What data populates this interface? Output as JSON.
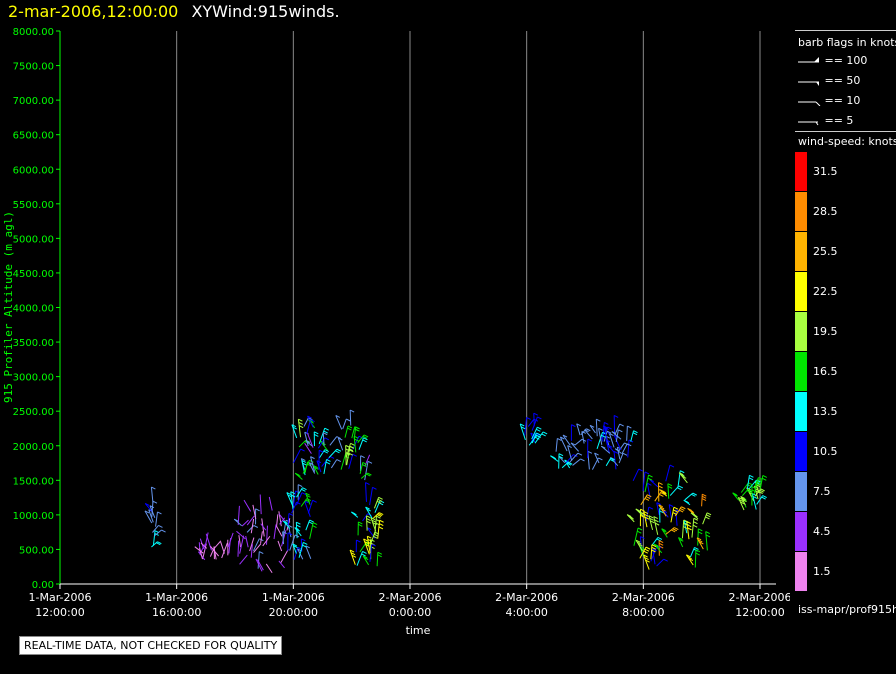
{
  "header": {
    "time": "2-mar-2006,12:00:00",
    "title": "XYWind:915winds."
  },
  "notice": "REAL-TIME DATA, NOT CHECKED FOR QUALITY",
  "side_footer": "iss-mapr/prof915h",
  "barb_legend": {
    "title": "barb flags in knots",
    "items": [
      {
        "label": "== 100"
      },
      {
        "label": "== 50"
      },
      {
        "label": "== 10"
      },
      {
        "label": "== 5"
      }
    ]
  },
  "speed_legend": {
    "title": "wind-speed: knots",
    "items": [
      {
        "label": "31.5",
        "color": "#ff0000"
      },
      {
        "label": "28.5",
        "color": "#ff8c00"
      },
      {
        "label": "25.5",
        "color": "#ffb300"
      },
      {
        "label": "22.5",
        "color": "#ffff00"
      },
      {
        "label": "19.5",
        "color": "#a8ff40"
      },
      {
        "label": "16.5",
        "color": "#00e600"
      },
      {
        "label": "13.5",
        "color": "#00ffff"
      },
      {
        "label": "10.5",
        "color": "#0000ff"
      },
      {
        "label": "7.5",
        "color": "#6495ed"
      },
      {
        "label": "4.5",
        "color": "#9b30ff"
      },
      {
        "label": "1.5",
        "color": "#ee82ee"
      }
    ]
  },
  "chart_data": {
    "type": "scatter",
    "xlabel": "time",
    "ylabel": "915 Profiler Altitude (m agl)",
    "ylim": [
      0,
      8000
    ],
    "yticks": [
      "0.00",
      "500.00",
      "1000.00",
      "1500.00",
      "2000.00",
      "2500.00",
      "3000.00",
      "3500.00",
      "4000.00",
      "4500.00",
      "5000.00",
      "5500.00",
      "6000.00",
      "6500.00",
      "7000.00",
      "7500.00",
      "8000.00"
    ],
    "xticks": [
      {
        "t": 0,
        "line1": "1-Mar-2006",
        "line2": "12:00:00"
      },
      {
        "t": 4,
        "line1": "1-Mar-2006",
        "line2": "16:00:00"
      },
      {
        "t": 8,
        "line1": "1-Mar-2006",
        "line2": "20:00:00"
      },
      {
        "t": 12,
        "line1": "2-Mar-2006",
        "line2": "0:00:00"
      },
      {
        "t": 16,
        "line1": "2-Mar-2006",
        "line2": "4:00:00"
      },
      {
        "t": 20,
        "line1": "2-Mar-2006",
        "line2": "8:00:00"
      },
      {
        "t": 24,
        "line1": "2-Mar-2006",
        "line2": "12:00:00"
      }
    ],
    "xlim_hours": [
      0,
      24
    ],
    "grid": "vertical",
    "clusters": [
      {
        "t": [
          3.1,
          3.3
        ],
        "alt": [
          500,
          1200
        ],
        "speed": [
          6,
          14
        ]
      },
      {
        "t": [
          4.8,
          5.8
        ],
        "alt": [
          350,
          550
        ],
        "speed": [
          1,
          5
        ]
      },
      {
        "t": [
          6.0,
          7.8
        ],
        "alt": [
          150,
          1100
        ],
        "speed": [
          1,
          8
        ]
      },
      {
        "t": [
          7.8,
          8.6
        ],
        "alt": [
          350,
          1350
        ],
        "speed": [
          8,
          16
        ]
      },
      {
        "t": [
          8.0,
          10.5
        ],
        "alt": [
          1500,
          2300
        ],
        "speed": [
          5,
          20
        ]
      },
      {
        "t": [
          10.1,
          10.9
        ],
        "alt": [
          250,
          1200
        ],
        "speed": [
          10,
          22
        ]
      },
      {
        "t": [
          15.9,
          16.3
        ],
        "alt": [
          2000,
          2350
        ],
        "speed": [
          9,
          16
        ]
      },
      {
        "t": [
          17.0,
          19.6
        ],
        "alt": [
          1650,
          2200
        ],
        "speed": [
          6,
          13
        ]
      },
      {
        "t": [
          19.6,
          22.2
        ],
        "alt": [
          200,
          1500
        ],
        "speed": [
          9,
          28
        ]
      },
      {
        "t": [
          23.2,
          24.0
        ],
        "alt": [
          1050,
          1400
        ],
        "speed": [
          14,
          20
        ]
      }
    ]
  }
}
